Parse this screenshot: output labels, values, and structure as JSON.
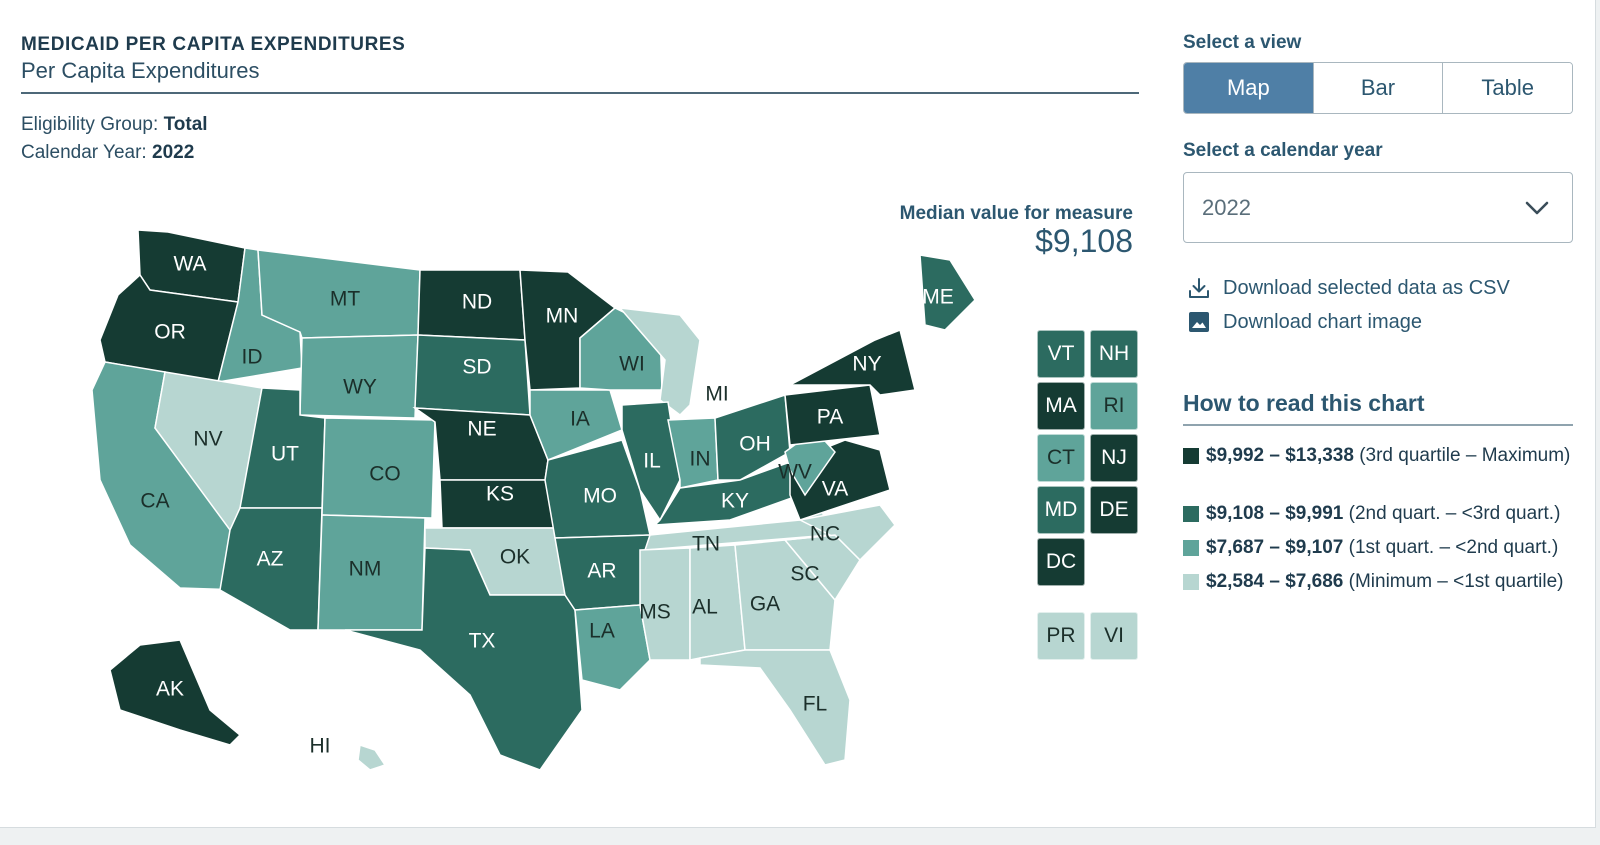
{
  "header": {
    "eyebrow": "MEDICAID PER CAPITA EXPENDITURES",
    "subtitle": "Per Capita Expenditures",
    "eligibility_label": "Eligibility Group:",
    "eligibility_value": "Total",
    "year_label": "Calendar Year:",
    "year_value": "2022"
  },
  "median": {
    "label": "Median value for measure",
    "value": "$9,108"
  },
  "colors": {
    "q4": "#153b33",
    "q3": "#2c6b60",
    "q2": "#5fa49a",
    "q1": "#b7d6d1",
    "border": "#ffffff"
  },
  "map": {
    "states": [
      {
        "abbr": "WA",
        "q": 4
      },
      {
        "abbr": "OR",
        "q": 4
      },
      {
        "abbr": "CA",
        "q": 2
      },
      {
        "abbr": "ID",
        "q": 2
      },
      {
        "abbr": "NV",
        "q": 1
      },
      {
        "abbr": "MT",
        "q": 2
      },
      {
        "abbr": "WY",
        "q": 2
      },
      {
        "abbr": "UT",
        "q": 3
      },
      {
        "abbr": "AZ",
        "q": 3
      },
      {
        "abbr": "CO",
        "q": 2
      },
      {
        "abbr": "NM",
        "q": 2
      },
      {
        "abbr": "ND",
        "q": 4
      },
      {
        "abbr": "SD",
        "q": 3
      },
      {
        "abbr": "NE",
        "q": 4
      },
      {
        "abbr": "KS",
        "q": 4
      },
      {
        "abbr": "OK",
        "q": 1
      },
      {
        "abbr": "TX",
        "q": 3
      },
      {
        "abbr": "MN",
        "q": 4
      },
      {
        "abbr": "IA",
        "q": 2
      },
      {
        "abbr": "MO",
        "q": 3
      },
      {
        "abbr": "AR",
        "q": 3
      },
      {
        "abbr": "LA",
        "q": 2
      },
      {
        "abbr": "WI",
        "q": 2
      },
      {
        "abbr": "MI",
        "q": 1
      },
      {
        "abbr": "IL",
        "q": 3
      },
      {
        "abbr": "IN",
        "q": 2
      },
      {
        "abbr": "OH",
        "q": 3
      },
      {
        "abbr": "KY",
        "q": 3
      },
      {
        "abbr": "TN",
        "q": 1
      },
      {
        "abbr": "MS",
        "q": 1
      },
      {
        "abbr": "AL",
        "q": 1
      },
      {
        "abbr": "GA",
        "q": 1
      },
      {
        "abbr": "FL",
        "q": 1
      },
      {
        "abbr": "SC",
        "q": 1
      },
      {
        "abbr": "NC",
        "q": 1
      },
      {
        "abbr": "VA",
        "q": 4
      },
      {
        "abbr": "WV",
        "q": 2
      },
      {
        "abbr": "PA",
        "q": 4
      },
      {
        "abbr": "NY",
        "q": 4
      },
      {
        "abbr": "ME",
        "q": 3
      },
      {
        "abbr": "AK",
        "q": 4
      },
      {
        "abbr": "HI",
        "q": 1
      }
    ],
    "tiles": [
      {
        "abbr": "VT",
        "q": 3
      },
      {
        "abbr": "NH",
        "q": 3
      },
      {
        "abbr": "MA",
        "q": 4
      },
      {
        "abbr": "RI",
        "q": 2
      },
      {
        "abbr": "CT",
        "q": 2
      },
      {
        "abbr": "NJ",
        "q": 4
      },
      {
        "abbr": "MD",
        "q": 3
      },
      {
        "abbr": "DE",
        "q": 4
      },
      {
        "abbr": "DC",
        "q": 4
      },
      {
        "abbr": "PR",
        "q": 1
      },
      {
        "abbr": "VI",
        "q": 1
      }
    ]
  },
  "sidebar": {
    "view_label": "Select a view",
    "views": [
      "Map",
      "Bar",
      "Table"
    ],
    "active_view": "Map",
    "year_select_label": "Select a calendar year",
    "year_selected": "2022",
    "download_csv": "Download selected data as CSV",
    "download_image": "Download chart image",
    "howto_title": "How to read this chart",
    "legend": [
      {
        "range": "$9,992 – $13,338",
        "desc": "(3rd quartile – Maximum)",
        "q": 4
      },
      {
        "range": "$9,108 – $9,991",
        "desc": "(2nd quart. – <3rd quart.)",
        "q": 3
      },
      {
        "range": "$7,687 – $9,107",
        "desc": "(1st quart. – <2nd quart.)",
        "q": 2
      },
      {
        "range": "$2,584 – $7,686",
        "desc": "(Minimum – <1st quartile)",
        "q": 1
      }
    ]
  }
}
